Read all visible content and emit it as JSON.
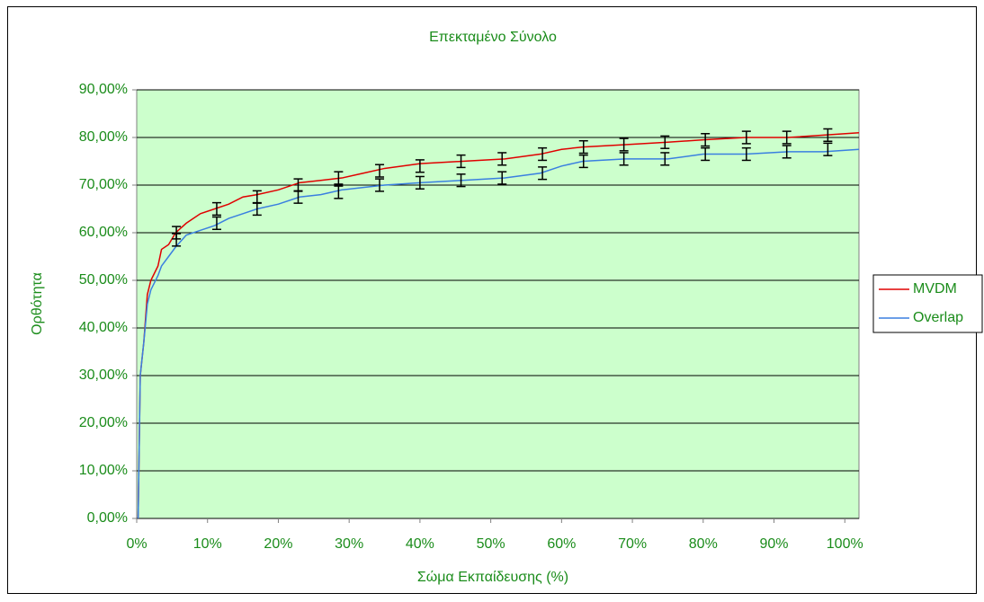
{
  "chart_data": {
    "type": "line",
    "title": "Επεκταμένο Σύνολο",
    "x_label": "Σώμα Εκπαίδευσης (%)",
    "y_label": "Ορθότητα",
    "xlim": [
      0,
      102
    ],
    "ylim": [
      0,
      90
    ],
    "xticks": [
      {
        "value": 0,
        "label": "0%"
      },
      {
        "value": 10,
        "label": "10%"
      },
      {
        "value": 20,
        "label": "20%"
      },
      {
        "value": 30,
        "label": "30%"
      },
      {
        "value": 40,
        "label": "40%"
      },
      {
        "value": 50,
        "label": "50%"
      },
      {
        "value": 60,
        "label": "60%"
      },
      {
        "value": 70,
        "label": "70%"
      },
      {
        "value": 80,
        "label": "80%"
      },
      {
        "value": 90,
        "label": "90%"
      },
      {
        "value": 100,
        "label": "100%"
      }
    ],
    "yticks": [
      {
        "value": 0,
        "label": "0,00%"
      },
      {
        "value": 10,
        "label": "10,00%"
      },
      {
        "value": 20,
        "label": "20,00%"
      },
      {
        "value": 30,
        "label": "30,00%"
      },
      {
        "value": 40,
        "label": "40,00%"
      },
      {
        "value": 50,
        "label": "50,00%"
      },
      {
        "value": 60,
        "label": "60,00%"
      },
      {
        "value": 70,
        "label": "70,00%"
      },
      {
        "value": 80,
        "label": "80,00%"
      },
      {
        "value": 90,
        "label": "90,00%"
      }
    ],
    "grid": true,
    "legend": "right",
    "x": [
      0.2,
      0.5,
      1,
      1.5,
      2,
      3,
      3.5,
      4.5,
      5.5,
      7,
      9,
      11,
      13,
      15,
      17,
      20,
      23,
      26,
      29,
      32,
      35,
      40,
      46,
      52,
      57,
      60,
      63,
      69,
      75,
      80,
      86,
      92,
      97,
      102
    ],
    "series": [
      {
        "name": "MVDM",
        "color": "#e00000",
        "values": [
          0,
          30,
          37,
          47,
          50,
          53,
          56.5,
          57.5,
          60,
          62,
          64,
          65,
          66,
          67.5,
          68,
          69,
          70.5,
          71,
          71.5,
          72.5,
          73.5,
          74.5,
          75,
          75.5,
          76.5,
          77.5,
          78,
          78.5,
          79,
          79.5,
          80,
          80,
          80.5,
          81
        ],
        "bar_x": [
          5.6,
          11.3,
          17.0,
          22.8,
          28.5,
          34.3,
          40.0,
          45.8,
          51.6,
          57.3,
          63.1,
          68.8,
          74.6,
          80.3,
          86.1,
          91.8,
          97.6
        ],
        "bar_values": [
          60,
          65,
          67.5,
          70,
          71.5,
          73,
          74,
          75,
          75.5,
          76.5,
          78,
          78.5,
          79,
          79.5,
          80,
          80,
          80.5
        ],
        "bar_errors": [
          1.3,
          1.3,
          1.3,
          1.3,
          1.3,
          1.3,
          1.3,
          1.3,
          1.3,
          1.3,
          1.3,
          1.3,
          1.3,
          1.3,
          1.3,
          1.3,
          1.3
        ]
      },
      {
        "name": "Overlap",
        "color": "#3a7fe0",
        "values": [
          0,
          30,
          37,
          45,
          48,
          51,
          53,
          55,
          57,
          59.5,
          60.5,
          61.5,
          63,
          64,
          65,
          66,
          67.5,
          68,
          69,
          69.5,
          70,
          70.5,
          71,
          71.5,
          72.5,
          74,
          75,
          75.5,
          75.5,
          76.5,
          76.5,
          77,
          77,
          77.5
        ],
        "bar_x": [
          5.6,
          11.3,
          17.0,
          22.8,
          28.5,
          34.3,
          40.0,
          45.8,
          51.6,
          57.3,
          63.1,
          68.8,
          74.6,
          80.3,
          86.1,
          91.8,
          97.6
        ],
        "bar_values": [
          58.5,
          62,
          65,
          67.5,
          68.5,
          70,
          70.5,
          71,
          71.5,
          72.5,
          75,
          75.5,
          75.5,
          76.5,
          76.5,
          77,
          77.5
        ],
        "bar_errors": [
          1.3,
          1.3,
          1.3,
          1.3,
          1.3,
          1.3,
          1.3,
          1.3,
          1.3,
          1.3,
          1.3,
          1.3,
          1.3,
          1.3,
          1.3,
          1.3,
          1.3
        ]
      }
    ]
  }
}
